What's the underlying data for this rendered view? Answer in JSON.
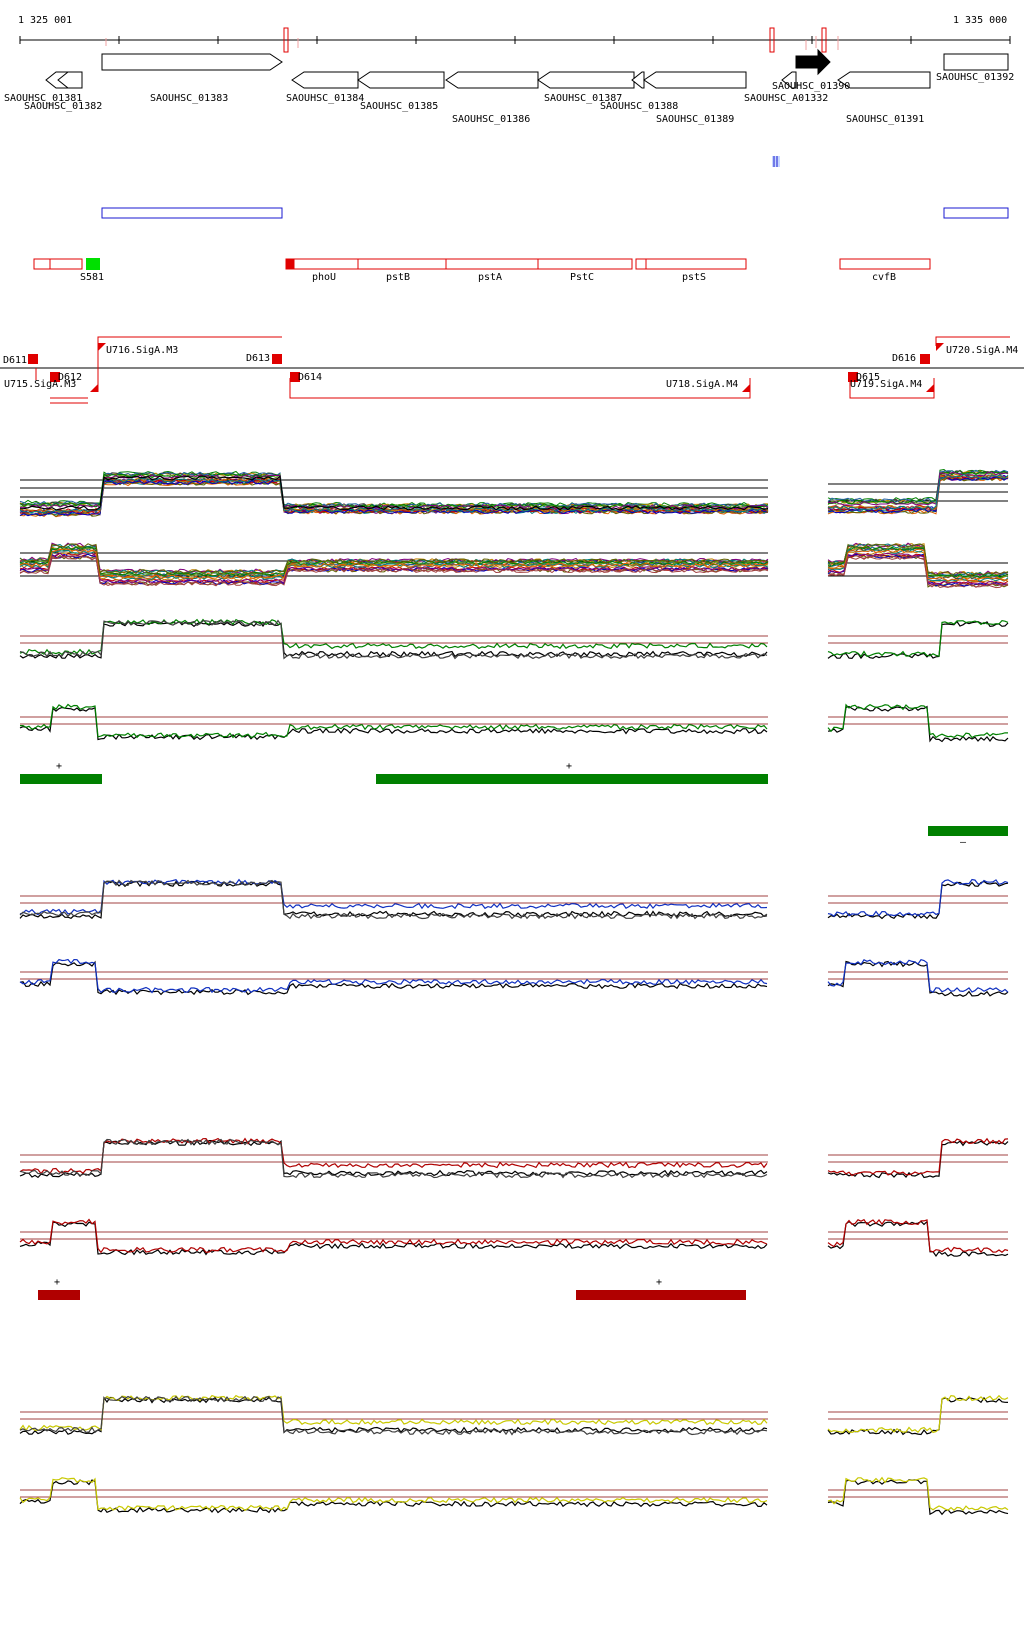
{
  "coords": {
    "start_label": "1 325 001",
    "end_label": "1 335 000"
  },
  "colors": {
    "gene": "#000000",
    "annotation": "#e00000",
    "overlay": "#1a1ad0",
    "green": "#008000",
    "blue": "#1030c0",
    "red": "#b00000",
    "yellow": "#c8c800",
    "threshold": "#a04040"
  },
  "genes": [
    {
      "label": "SAOUHSC_01381"
    },
    {
      "label": "SAOUHSC_01382"
    },
    {
      "label": "SAOUHSC_01383"
    },
    {
      "label": "SAOUHSC_01384"
    },
    {
      "label": "SAOUHSC_01385"
    },
    {
      "label": "SAOUHSC_01386"
    },
    {
      "label": "SAOUHSC_01387"
    },
    {
      "label": "SAOUHSC_01388"
    },
    {
      "label": "SAOUHSC_01389"
    },
    {
      "label": "SAOUHSC_A01332"
    },
    {
      "label": "SAOUHSC_01390"
    },
    {
      "label": "SAOUHSC_01391"
    },
    {
      "label": "SAOUHSC_01392"
    }
  ],
  "annotations": [
    {
      "label": "S581"
    },
    {
      "label": "phoU"
    },
    {
      "label": "pstB"
    },
    {
      "label": "pstA"
    },
    {
      "label": "PstC"
    },
    {
      "label": "pstS"
    },
    {
      "label": "cvfB"
    }
  ],
  "features": [
    {
      "label": "D611"
    },
    {
      "label": "U715.SigA.M3"
    },
    {
      "label": "D612"
    },
    {
      "label": "U716.SigA.M3"
    },
    {
      "label": "D613"
    },
    {
      "label": "D614"
    },
    {
      "label": "U718.SigA.M4"
    },
    {
      "label": "D615"
    },
    {
      "label": "U719.SigA.M4"
    },
    {
      "label": "D616"
    },
    {
      "label": "U720.SigA.M4"
    }
  ],
  "segment_signs": {
    "green_1": "+",
    "green_2": "+",
    "green_3": "–",
    "red_1": "+",
    "red_2": "+"
  }
}
